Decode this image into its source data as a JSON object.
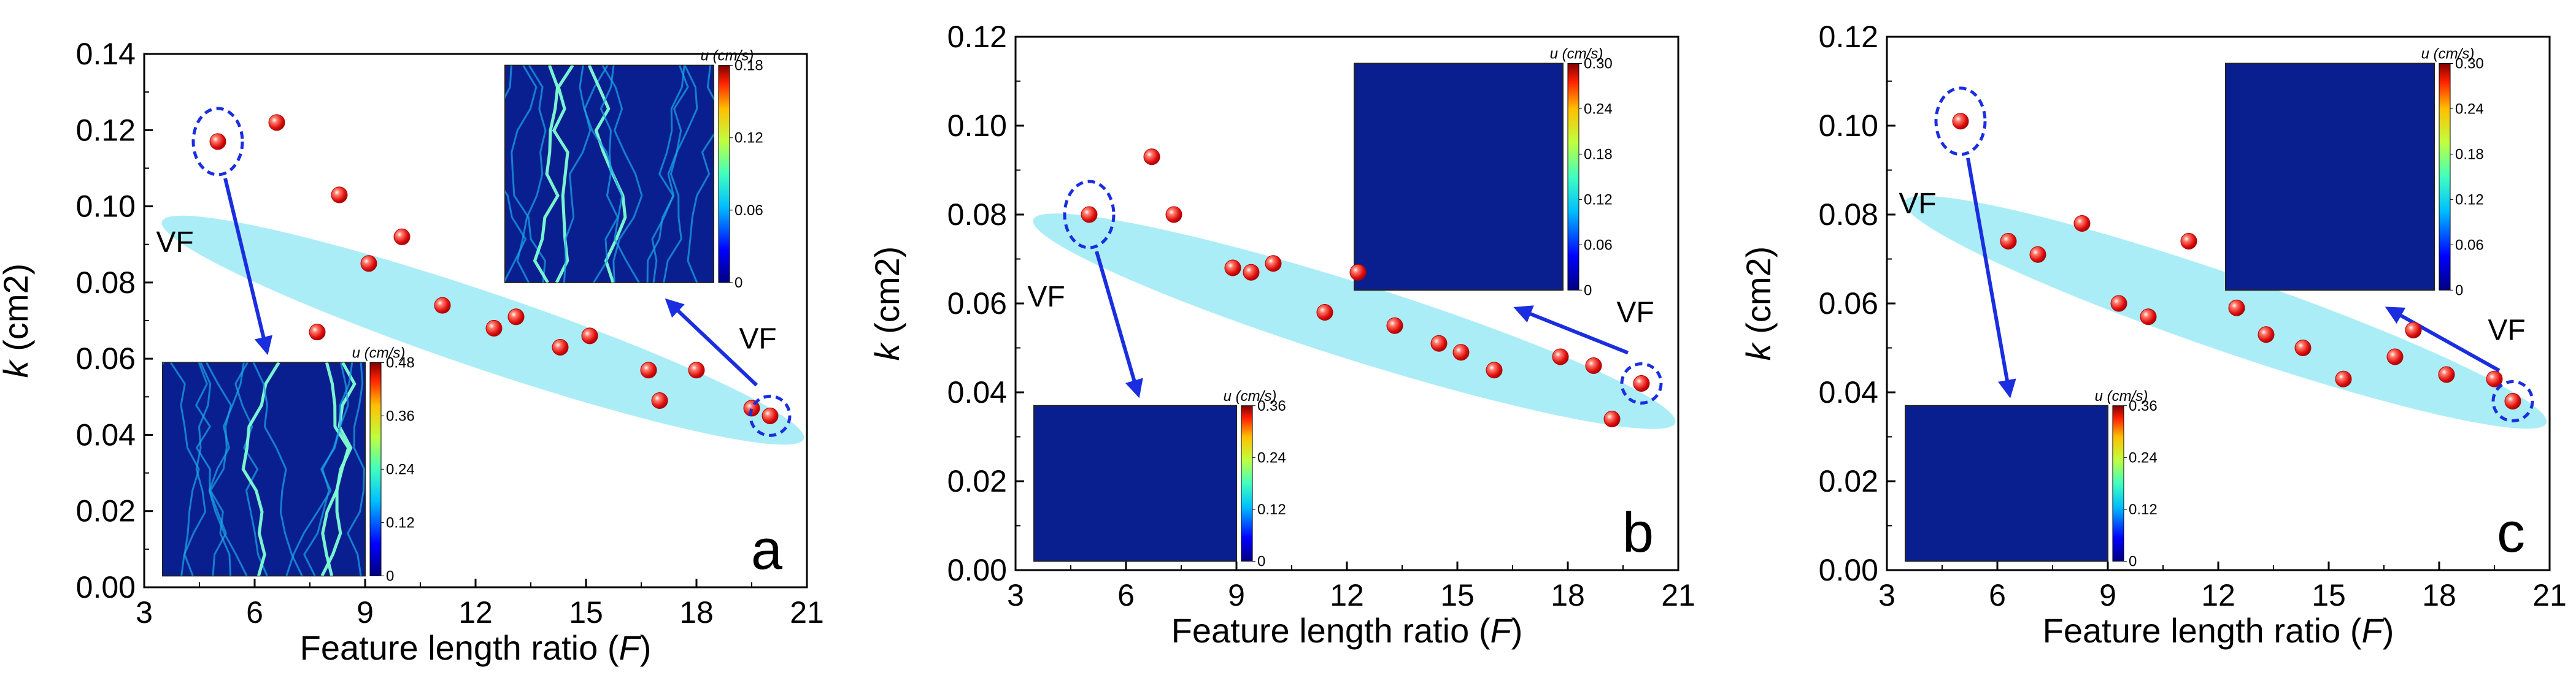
{
  "figure": {
    "panel_count": 3
  },
  "chart_data": [
    {
      "type": "scatter",
      "panel": "a",
      "xlabel": "Feature length ratio",
      "xlabel_var": "F",
      "ylabel": "k",
      "ylabel_unit": "(cm2)",
      "xlim": [
        3,
        21
      ],
      "ylim": [
        0,
        0.14
      ],
      "xticks": [
        "3",
        "6",
        "9",
        "12",
        "15",
        "18",
        "21"
      ],
      "yticks": [
        "0.00",
        "0.02",
        "0.04",
        "0.06",
        "0.08",
        "0.10",
        "0.12",
        "0.14"
      ],
      "ytick_values": [
        0,
        0.02,
        0.04,
        0.06,
        0.08,
        0.1,
        0.12,
        0.14
      ],
      "xtick_values": [
        3,
        6,
        9,
        12,
        15,
        18,
        21
      ],
      "points": [
        {
          "x": 5.0,
          "y": 0.117
        },
        {
          "x": 6.6,
          "y": 0.122
        },
        {
          "x": 7.7,
          "y": 0.067
        },
        {
          "x": 8.3,
          "y": 0.103
        },
        {
          "x": 9.1,
          "y": 0.085
        },
        {
          "x": 10.0,
          "y": 0.092
        },
        {
          "x": 11.1,
          "y": 0.074
        },
        {
          "x": 12.5,
          "y": 0.068
        },
        {
          "x": 13.1,
          "y": 0.071
        },
        {
          "x": 14.3,
          "y": 0.063
        },
        {
          "x": 15.1,
          "y": 0.066
        },
        {
          "x": 16.7,
          "y": 0.057
        },
        {
          "x": 17.0,
          "y": 0.049
        },
        {
          "x": 18.0,
          "y": 0.057
        },
        {
          "x": 19.5,
          "y": 0.047
        },
        {
          "x": 20.0,
          "y": 0.045
        }
      ],
      "highlight_points": [
        0,
        15
      ],
      "annotations": [
        "VF",
        "VF"
      ],
      "inset_low": {
        "title": "u (cm/s)",
        "ticks": [
          "0.48",
          "0.36",
          "0.24",
          "0.12",
          "0"
        ]
      },
      "inset_high": {
        "title": "u (cm/s)",
        "ticks": [
          "0.18",
          "0.12",
          "0.06",
          "0"
        ]
      }
    },
    {
      "type": "scatter",
      "panel": "b",
      "xlabel": "Feature length ratio",
      "xlabel_var": "F",
      "ylabel": "k",
      "ylabel_unit": "(cm2)",
      "xlim": [
        3,
        21
      ],
      "ylim": [
        0,
        0.12
      ],
      "xticks": [
        "3",
        "6",
        "9",
        "12",
        "15",
        "18",
        "21"
      ],
      "yticks": [
        "0.00",
        "0.02",
        "0.04",
        "0.06",
        "0.08",
        "0.10",
        "0.12"
      ],
      "ytick_values": [
        0,
        0.02,
        0.04,
        0.06,
        0.08,
        0.1,
        0.12
      ],
      "xtick_values": [
        3,
        6,
        9,
        12,
        15,
        18,
        21
      ],
      "points": [
        {
          "x": 5.0,
          "y": 0.08
        },
        {
          "x": 6.7,
          "y": 0.093
        },
        {
          "x": 7.3,
          "y": 0.08
        },
        {
          "x": 8.9,
          "y": 0.068
        },
        {
          "x": 9.4,
          "y": 0.067
        },
        {
          "x": 10.0,
          "y": 0.069
        },
        {
          "x": 11.4,
          "y": 0.058
        },
        {
          "x": 12.3,
          "y": 0.067
        },
        {
          "x": 13.3,
          "y": 0.055
        },
        {
          "x": 14.5,
          "y": 0.051
        },
        {
          "x": 15.1,
          "y": 0.049
        },
        {
          "x": 16.0,
          "y": 0.045
        },
        {
          "x": 17.8,
          "y": 0.048
        },
        {
          "x": 18.7,
          "y": 0.046
        },
        {
          "x": 19.2,
          "y": 0.034
        },
        {
          "x": 20.0,
          "y": 0.042
        }
      ],
      "highlight_points": [
        0,
        15
      ],
      "annotations": [
        "VF",
        "VF"
      ],
      "inset_low": {
        "title": "u (cm/s)",
        "ticks": [
          "0.36",
          "0.24",
          "0.12",
          "0"
        ]
      },
      "inset_high": {
        "title": "u (cm/s)",
        "ticks": [
          "0.30",
          "0.24",
          "0.18",
          "0.12",
          "0.06",
          "0"
        ]
      }
    },
    {
      "type": "scatter",
      "panel": "c",
      "xlabel": "Feature length ratio",
      "xlabel_var": "F",
      "ylabel": "k",
      "ylabel_unit": "(cm2)",
      "xlim": [
        3,
        21
      ],
      "ylim": [
        0,
        0.12
      ],
      "xticks": [
        "3",
        "6",
        "9",
        "12",
        "15",
        "18",
        "21"
      ],
      "yticks": [
        "0.00",
        "0.02",
        "0.04",
        "0.06",
        "0.08",
        "0.10",
        "0.12"
      ],
      "ytick_values": [
        0,
        0.02,
        0.04,
        0.06,
        0.08,
        0.1,
        0.12
      ],
      "xtick_values": [
        3,
        6,
        9,
        12,
        15,
        18,
        21
      ],
      "points": [
        {
          "x": 5.0,
          "y": 0.101
        },
        {
          "x": 6.3,
          "y": 0.074
        },
        {
          "x": 7.1,
          "y": 0.071
        },
        {
          "x": 8.3,
          "y": 0.078
        },
        {
          "x": 9.3,
          "y": 0.06
        },
        {
          "x": 10.1,
          "y": 0.057
        },
        {
          "x": 11.2,
          "y": 0.074
        },
        {
          "x": 12.5,
          "y": 0.059
        },
        {
          "x": 13.3,
          "y": 0.053
        },
        {
          "x": 14.3,
          "y": 0.05
        },
        {
          "x": 15.4,
          "y": 0.043
        },
        {
          "x": 16.8,
          "y": 0.048
        },
        {
          "x": 17.3,
          "y": 0.054
        },
        {
          "x": 18.2,
          "y": 0.044
        },
        {
          "x": 19.5,
          "y": 0.043
        },
        {
          "x": 20.0,
          "y": 0.038
        }
      ],
      "highlight_points": [
        0,
        15
      ],
      "annotations": [
        "VF",
        "VF"
      ],
      "inset_low": {
        "title": "u (cm/s)",
        "ticks": [
          "0.36",
          "0.24",
          "0.12",
          "0"
        ]
      },
      "inset_high": {
        "title": "u (cm/s)",
        "ticks": [
          "0.30",
          "0.24",
          "0.18",
          "0.12",
          "0.06",
          "0"
        ]
      }
    }
  ],
  "colors": {
    "marker": "#e02020",
    "marker_highlight": "#ff8a80",
    "band": "#a6ecf5",
    "arrow": "#1a2ee0",
    "dashed_ellipse": "#1a2ee0",
    "inset_bg": "#0a1f8f",
    "inset_vein": "#1aa8e8"
  }
}
